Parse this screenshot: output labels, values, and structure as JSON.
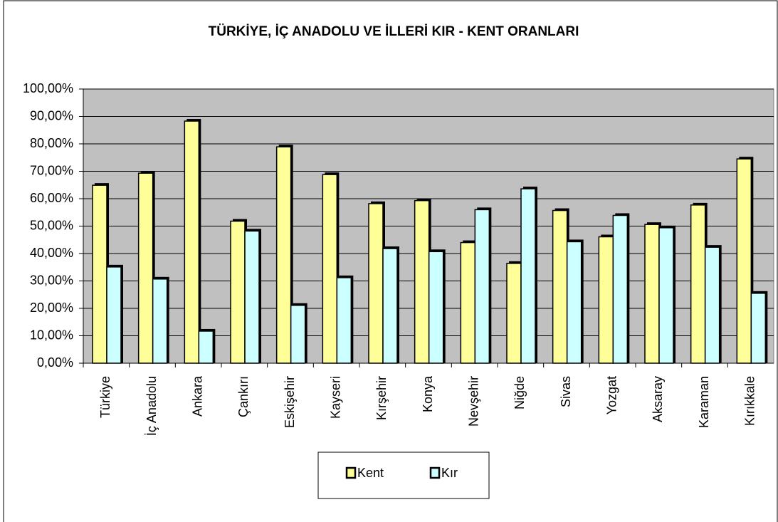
{
  "chart_data": {
    "type": "bar",
    "title": "TÜRKİYE, İÇ ANADOLU VE İLLERİ KIR - KENT ORANLARI",
    "categories": [
      "Türkiye",
      "İç Anadolu",
      "Ankara",
      "Çankırı",
      "Eskişehir",
      "Kayseri",
      "Kırşehir",
      "Konya",
      "Nevşehir",
      "Niğde",
      "Sivas",
      "Yozgat",
      "Aksaray",
      "Karaman",
      "Kırıkkale"
    ],
    "series": [
      {
        "name": "Kent",
        "color": "#ffff99",
        "values": [
          64.9,
          69.3,
          88.3,
          51.8,
          78.9,
          68.8,
          58.2,
          59.3,
          44.0,
          36.4,
          55.7,
          46.1,
          50.6,
          57.7,
          74.5
        ]
      },
      {
        "name": "Kır",
        "color": "#ccffff",
        "values": [
          35.1,
          30.7,
          11.7,
          48.2,
          21.1,
          31.2,
          41.8,
          40.7,
          56.0,
          63.6,
          44.3,
          53.9,
          49.4,
          42.3,
          25.5
        ]
      }
    ],
    "ylim": [
      0,
      100
    ],
    "yticks": [
      {
        "value": 0,
        "label": "0,00%"
      },
      {
        "value": 10,
        "label": "10,00%"
      },
      {
        "value": 20,
        "label": "20,00%"
      },
      {
        "value": 30,
        "label": "30,00%"
      },
      {
        "value": 40,
        "label": "40,00%"
      },
      {
        "value": 50,
        "label": "50,00%"
      },
      {
        "value": 60,
        "label": "60,00%"
      },
      {
        "value": 70,
        "label": "70,00%"
      },
      {
        "value": 80,
        "label": "80,00%"
      },
      {
        "value": 90,
        "label": "90,00%"
      },
      {
        "value": 100,
        "label": "100,00%"
      }
    ],
    "grid": true,
    "plot_background": "#c0c0c0"
  }
}
